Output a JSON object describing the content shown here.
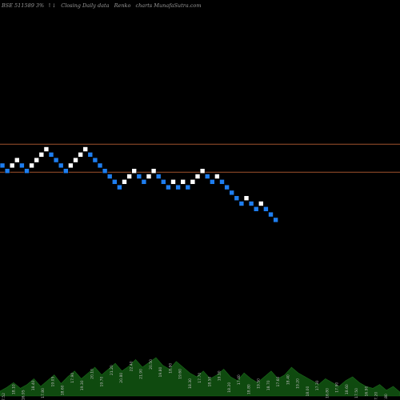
{
  "header": {
    "symbol": "BSE 511589 3%",
    "arrows": "↑↓",
    "description": "Closing Daily data",
    "chart_name": "Renko",
    "site": "charts MunafaSutra.com"
  },
  "colors": {
    "background": "#000000",
    "up_brick": "#ffffff",
    "down_brick": "#1e7ef0",
    "level_line": "#a0522d",
    "volume_fill": "#0f4a0f",
    "label_text": "#bbbbbb"
  },
  "chart_data": {
    "type": "renko",
    "levels": [
      1,
      6
    ],
    "bricks": [
      {
        "level": 2,
        "dir": "down"
      },
      {
        "level": 1,
        "dir": "down"
      },
      {
        "level": 2,
        "dir": "up"
      },
      {
        "level": 3,
        "dir": "up"
      },
      {
        "level": 2,
        "dir": "down"
      },
      {
        "level": 1,
        "dir": "down"
      },
      {
        "level": 2,
        "dir": "up"
      },
      {
        "level": 3,
        "dir": "up"
      },
      {
        "level": 4,
        "dir": "up"
      },
      {
        "level": 5,
        "dir": "up"
      },
      {
        "level": 4,
        "dir": "down"
      },
      {
        "level": 3,
        "dir": "down"
      },
      {
        "level": 2,
        "dir": "down"
      },
      {
        "level": 1,
        "dir": "down"
      },
      {
        "level": 2,
        "dir": "up"
      },
      {
        "level": 3,
        "dir": "up"
      },
      {
        "level": 4,
        "dir": "up"
      },
      {
        "level": 5,
        "dir": "up"
      },
      {
        "level": 4,
        "dir": "down"
      },
      {
        "level": 3,
        "dir": "down"
      },
      {
        "level": 2,
        "dir": "down"
      },
      {
        "level": 1,
        "dir": "down"
      },
      {
        "level": 0,
        "dir": "down"
      },
      {
        "level": -1,
        "dir": "down"
      },
      {
        "level": -2,
        "dir": "down"
      },
      {
        "level": -1,
        "dir": "up"
      },
      {
        "level": 0,
        "dir": "up"
      },
      {
        "level": 1,
        "dir": "up"
      },
      {
        "level": 0,
        "dir": "down"
      },
      {
        "level": -1,
        "dir": "down"
      },
      {
        "level": 0,
        "dir": "up"
      },
      {
        "level": 1,
        "dir": "up"
      },
      {
        "level": 0,
        "dir": "down"
      },
      {
        "level": -1,
        "dir": "down"
      },
      {
        "level": -2,
        "dir": "down"
      },
      {
        "level": -1,
        "dir": "up"
      },
      {
        "level": -2,
        "dir": "down"
      },
      {
        "level": -1,
        "dir": "up"
      },
      {
        "level": -2,
        "dir": "down"
      },
      {
        "level": -1,
        "dir": "up"
      },
      {
        "level": 0,
        "dir": "up"
      },
      {
        "level": 1,
        "dir": "up"
      },
      {
        "level": 0,
        "dir": "down"
      },
      {
        "level": -1,
        "dir": "down"
      },
      {
        "level": 0,
        "dir": "up"
      },
      {
        "level": -1,
        "dir": "down"
      },
      {
        "level": -2,
        "dir": "down"
      },
      {
        "level": -3,
        "dir": "down"
      },
      {
        "level": -4,
        "dir": "down"
      },
      {
        "level": -5,
        "dir": "down"
      },
      {
        "level": -4,
        "dir": "up"
      },
      {
        "level": -5,
        "dir": "down"
      },
      {
        "level": -6,
        "dir": "down"
      },
      {
        "level": -5,
        "dir": "up"
      },
      {
        "level": -6,
        "dir": "down"
      },
      {
        "level": -7,
        "dir": "down"
      },
      {
        "level": -8,
        "dir": "down"
      }
    ],
    "volume": [
      5,
      9,
      14,
      8,
      12,
      18,
      10,
      16,
      22,
      13,
      20,
      26,
      18,
      24,
      30,
      22,
      28,
      34,
      26,
      31,
      38,
      30,
      35,
      40,
      32,
      28,
      36,
      30,
      24,
      20,
      26,
      18,
      22,
      28,
      20,
      16,
      24,
      18,
      14,
      20,
      26,
      18,
      22,
      30,
      24,
      20,
      16,
      12,
      18,
      14,
      10,
      16,
      20,
      14,
      10,
      8,
      12,
      6,
      10,
      4
    ],
    "volume_labels": [
      "17.52",
      "18.10",
      "16.95",
      "18.40",
      "17.80",
      "19.05",
      "18.60",
      "17.90",
      "19.30",
      "20.10",
      "19.70",
      "21.20",
      "20.80",
      "22.40",
      "21.90",
      "20.50",
      "19.80",
      "18.90",
      "19.60",
      "18.30",
      "17.70",
      "18.50",
      "19.10",
      "18.20",
      "17.40",
      "18.80",
      "19.50",
      "18.70",
      "17.60",
      "18.40",
      "19.20",
      "18.00",
      "17.30",
      "16.80",
      "17.90",
      "18.60",
      "17.50",
      "16.90",
      "17.20",
      "17.80"
    ]
  }
}
